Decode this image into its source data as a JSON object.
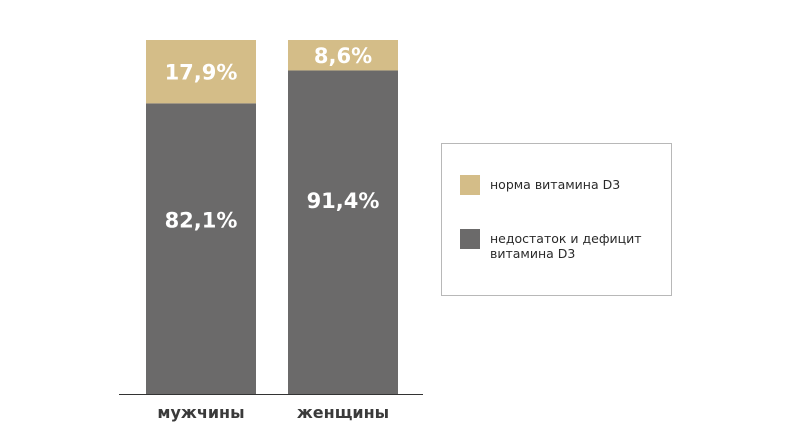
{
  "chart_data": {
    "type": "bar",
    "stacked": true,
    "categories": [
      "мужчины",
      "женщины"
    ],
    "series": [
      {
        "name": "недостаток и дефицит витамина D3",
        "values": [
          82.1,
          91.4
        ],
        "labels": [
          "82,1%",
          "91,4%"
        ],
        "color": "#6b6a6a"
      },
      {
        "name": "норма витамина D3",
        "values": [
          17.9,
          8.6
        ],
        "labels": [
          "17,9%",
          "8,6%"
        ],
        "color": "#d4bd88"
      }
    ],
    "ylim": [
      0,
      100
    ],
    "legend_position": "right",
    "grid": false
  },
  "legend": {
    "items": [
      {
        "label": "норма витамина D3",
        "color": "#d4bd88"
      },
      {
        "label": "недостаток и дефицит витамина D3",
        "color": "#6b6a6a"
      }
    ]
  }
}
